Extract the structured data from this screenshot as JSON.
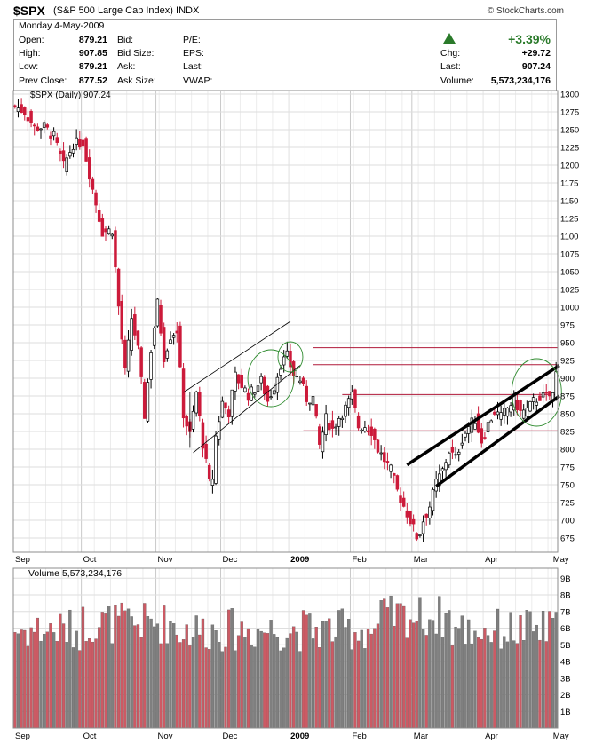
{
  "header": {
    "symbol": "$SPX",
    "description": "(S&P 500 Large Cap Index)",
    "exchange": "INDX",
    "brand": "© StockCharts.com"
  },
  "quote": {
    "date": "Monday  4-May-2009",
    "open_label": "Open:",
    "open": "879.21",
    "high_label": "High:",
    "high": "907.85",
    "low_label": "Low:",
    "low": "879.21",
    "prev_label": "Prev Close:",
    "prev": "877.52",
    "bid_label": "Bid:",
    "bidsize_label": "Bid Size:",
    "ask_label": "Ask:",
    "asksize_label": "Ask Size:",
    "pe_label": "P/E:",
    "eps_label": "EPS:",
    "last_label_mid": "Last:",
    "vwap_label": "VWAP:",
    "pct_change": "+3.39%",
    "chg_label": "Chg:",
    "chg": "+29.72",
    "last_label": "Last:",
    "last": "907.24",
    "volume_label": "Volume:",
    "volume": "5,573,234,176",
    "up_color": "#2a7a2a"
  },
  "chart_data": [
    {
      "type": "candlestick",
      "legend": "$SPX (Daily) 907.24",
      "period": "Daily",
      "ylim": [
        655,
        1305
      ],
      "y_ticks": [
        675,
        700,
        725,
        750,
        775,
        800,
        825,
        850,
        875,
        900,
        925,
        950,
        975,
        1000,
        1025,
        1050,
        1075,
        1100,
        1125,
        1150,
        1175,
        1200,
        1225,
        1250,
        1275,
        1300
      ],
      "x_ticks": [
        "Sep",
        "Oct",
        "Nov",
        "Dec",
        "2009",
        "Feb",
        "Mar",
        "Apr",
        "May"
      ],
      "grid": true,
      "close_path": [
        [
          0,
          1283
        ],
        [
          3,
          1275
        ],
        [
          6,
          1253
        ],
        [
          9,
          1254
        ],
        [
          12,
          1240
        ],
        [
          15,
          1199
        ],
        [
          18,
          1230
        ],
        [
          21,
          1232
        ],
        [
          24,
          1166
        ],
        [
          27,
          1106
        ],
        [
          30,
          1109
        ],
        [
          32,
          1001
        ],
        [
          34,
          909
        ],
        [
          36,
          985
        ],
        [
          38,
          940
        ],
        [
          40,
          848
        ],
        [
          42,
          940
        ],
        [
          44,
          1005
        ],
        [
          46,
          930
        ],
        [
          48,
          960
        ],
        [
          50,
          968
        ],
        [
          52,
          850
        ],
        [
          54,
          820
        ],
        [
          56,
          880
        ],
        [
          58,
          808
        ],
        [
          60,
          752
        ],
        [
          61,
          760
        ],
        [
          62,
          818
        ],
        [
          64,
          866
        ],
        [
          66,
          852
        ],
        [
          68,
          903
        ],
        [
          70,
          890
        ],
        [
          72,
          876
        ],
        [
          74,
          885
        ],
        [
          76,
          896
        ],
        [
          78,
          868
        ],
        [
          80,
          889
        ],
        [
          82,
          920
        ],
        [
          84,
          931
        ],
        [
          86,
          905
        ],
        [
          88,
          898
        ],
        [
          90,
          871
        ],
        [
          92,
          872
        ],
        [
          94,
          805
        ],
        [
          96,
          843
        ],
        [
          98,
          828
        ],
        [
          100,
          845
        ],
        [
          102,
          858
        ],
        [
          104,
          875
        ],
        [
          106,
          832
        ],
        [
          108,
          833
        ],
        [
          110,
          826
        ],
        [
          112,
          800
        ],
        [
          114,
          785
        ],
        [
          116,
          770
        ],
        [
          118,
          741
        ],
        [
          120,
          720
        ],
        [
          122,
          700
        ],
        [
          124,
          677
        ],
        [
          125,
          683
        ],
        [
          126,
          700
        ],
        [
          128,
          720
        ],
        [
          130,
          753
        ],
        [
          132,
          770
        ],
        [
          134,
          798
        ],
        [
          136,
          787
        ],
        [
          138,
          815
        ],
        [
          140,
          832
        ],
        [
          142,
          842
        ],
        [
          144,
          812
        ],
        [
          146,
          835
        ],
        [
          148,
          853
        ],
        [
          150,
          845
        ],
        [
          152,
          858
        ],
        [
          154,
          870
        ],
        [
          156,
          852
        ],
        [
          158,
          855
        ],
        [
          160,
          867
        ],
        [
          162,
          874
        ],
        [
          164,
          873
        ],
        [
          166,
          877
        ],
        [
          167,
          907
        ]
      ],
      "volume_ylim": [
        0,
        9.6
      ],
      "volume_unit": "B",
      "volume_ticks": [
        1,
        2,
        3,
        4,
        5,
        6,
        7,
        8,
        9
      ],
      "volume_legend": "Volume 5,573,234,176",
      "annotations": [
        {
          "kind": "horizontal_level",
          "value": 943
        },
        {
          "kind": "horizontal_level",
          "value": 919
        },
        {
          "kind": "horizontal_level",
          "value": 877
        },
        {
          "kind": "horizontal_level",
          "value": 826
        },
        {
          "kind": "rising_wedge",
          "upper": [
            [
              121,
              778
            ],
            [
              168,
              918
            ]
          ],
          "lower": [
            [
              130,
              748
            ],
            [
              168,
              875
            ]
          ]
        },
        {
          "kind": "channel",
          "upper": [
            [
              52,
              880
            ],
            [
              85,
              980
            ]
          ],
          "lower": [
            [
              55,
              795
            ],
            [
              88,
              918
            ]
          ]
        },
        {
          "kind": "circle",
          "at": "early Jan 2009"
        },
        {
          "kind": "circle",
          "at": "late Apr 2009"
        }
      ],
      "colors": {
        "up": "#ffffff",
        "down": "#cc1a3a",
        "level": "#b01a3a",
        "wedge": "#000000",
        "circle": "#2e8b2e",
        "vol_up": "#7f7f7f",
        "vol_down": "#cc5a64"
      }
    }
  ]
}
